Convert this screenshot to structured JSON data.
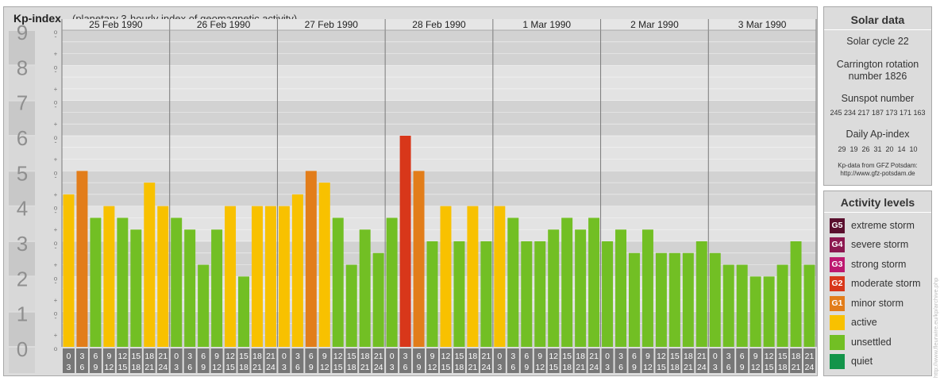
{
  "header": {
    "title": "Kp-index",
    "subtitle": "(planetary 3-hourly index of geomagnetic activity)"
  },
  "solar": {
    "title": "Solar data",
    "cycle": "Solar cycle 22",
    "carrington_line1": "Carrington rotation",
    "carrington_line2": "number 1826",
    "sunspot_label": "Sunspot number",
    "sunspot_values": "245 234 217 187 173 171 163",
    "ap_label": "Daily Ap-index",
    "ap_values": "29  19  26  31  20  14  10",
    "source_line1": "Kp-data from GFZ Potsdam:",
    "source_line2": "http://www.gfz-potsdam.de"
  },
  "activity": {
    "title": "Activity levels",
    "levels": [
      {
        "code": "G5",
        "label": "extreme storm",
        "color": "#5a0f2e"
      },
      {
        "code": "G4",
        "label": "severe storm",
        "color": "#8c1850"
      },
      {
        "code": "G3",
        "label": "strong storm",
        "color": "#bd1870"
      },
      {
        "code": "G2",
        "label": "moderate storm",
        "color": "#d8371a"
      },
      {
        "code": "G1",
        "label": "minor storm",
        "color": "#e27d1a"
      },
      {
        "code": "",
        "label": "active",
        "color": "#f8c100"
      },
      {
        "code": "",
        "label": "unsettled",
        "color": "#72bf24"
      },
      {
        "code": "",
        "label": "quiet",
        "color": "#13944a"
      }
    ]
  },
  "watermark": "http://www.fleurwire.eu/kp/archive.php",
  "chart_data": {
    "type": "bar",
    "title": "Kp-index",
    "ylim": [
      0,
      9
    ],
    "y_ticks": [
      "0",
      "1",
      "2",
      "3",
      "4",
      "5",
      "6",
      "7",
      "8",
      "9"
    ],
    "sub_ticks": [
      "+",
      "o",
      "-"
    ],
    "days": [
      "25 Feb 1990",
      "26 Feb 1990",
      "27 Feb 1990",
      "28 Feb 1990",
      "1 Mar 1990",
      "2 Mar 1990",
      "3 Mar 1990"
    ],
    "slot_starts": [
      "0",
      "3",
      "6",
      "9",
      "12",
      "15",
      "18",
      "21"
    ],
    "slot_ends": [
      "3",
      "6",
      "9",
      "12",
      "15",
      "18",
      "21",
      "24"
    ],
    "values": [
      4.333,
      5,
      3.667,
      4,
      3.667,
      3.333,
      4.667,
      4,
      3.667,
      3.333,
      2.333,
      3.333,
      4,
      2,
      4,
      4,
      4,
      4.333,
      5,
      4.667,
      3.667,
      2.333,
      3.333,
      2.667,
      3.667,
      6,
      5,
      3,
      4,
      3,
      4,
      3,
      4,
      3.667,
      3,
      3,
      3.333,
      3.667,
      3.333,
      3.667,
      3,
      3.333,
      2.667,
      3.333,
      2.667,
      2.667,
      2.667,
      3,
      2.667,
      2.333,
      2.333,
      2,
      2,
      2.333,
      3,
      2.333
    ],
    "level_colors": {
      "G2": "#d8371a",
      "G1": "#e27d1a",
      "active": "#f8c100",
      "unsettled": "#72bf24",
      "quiet": "#13944a"
    }
  }
}
